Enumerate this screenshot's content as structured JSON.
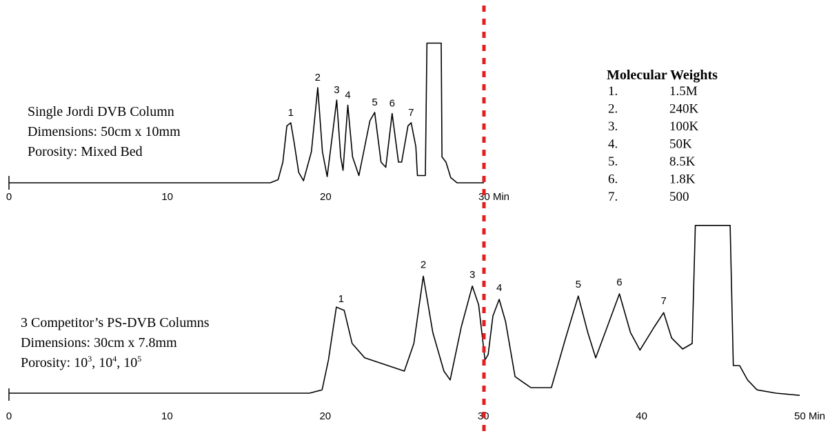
{
  "colors": {
    "trace": "#000000",
    "marker_line": "#e02020",
    "background": "#ffffff"
  },
  "chart_data": [
    {
      "type": "line",
      "panel": "top",
      "info_lines": [
        "Single Jordi DVB Column",
        "Dimensions: 50cm x 10mm",
        "Porosity: Mixed Bed"
      ],
      "xlim": [
        0,
        30
      ],
      "xticks": [
        0,
        10,
        20,
        30
      ],
      "tick_labels": [
        "0",
        "10",
        "20",
        "30 Min"
      ],
      "peaks": [
        {
          "label": "1",
          "x": 17.8
        },
        {
          "label": "2",
          "x": 19.5
        },
        {
          "label": "3",
          "x": 20.7
        },
        {
          "label": "4",
          "x": 21.4
        },
        {
          "label": "5",
          "x": 23.1
        },
        {
          "label": "6",
          "x": 24.2
        },
        {
          "label": "7",
          "x": 25.4
        }
      ],
      "trace": [
        [
          0,
          0.0
        ],
        [
          16.5,
          0.0
        ],
        [
          17.0,
          0.03
        ],
        [
          17.3,
          0.2
        ],
        [
          17.55,
          0.55
        ],
        [
          17.8,
          0.58
        ],
        [
          18.0,
          0.4
        ],
        [
          18.3,
          0.1
        ],
        [
          18.6,
          0.02
        ],
        [
          19.1,
          0.3
        ],
        [
          19.5,
          0.92
        ],
        [
          19.8,
          0.3
        ],
        [
          20.1,
          0.06
        ],
        [
          20.5,
          0.55
        ],
        [
          20.7,
          0.8
        ],
        [
          20.95,
          0.25
        ],
        [
          21.1,
          0.12
        ],
        [
          21.4,
          0.75
        ],
        [
          21.7,
          0.25
        ],
        [
          22.1,
          0.07
        ],
        [
          22.8,
          0.6
        ],
        [
          23.1,
          0.68
        ],
        [
          23.5,
          0.2
        ],
        [
          23.8,
          0.15
        ],
        [
          24.2,
          0.67
        ],
        [
          24.6,
          0.2
        ],
        [
          24.8,
          0.2
        ],
        [
          25.2,
          0.55
        ],
        [
          25.4,
          0.58
        ],
        [
          25.7,
          0.35
        ],
        [
          25.8,
          0.07
        ],
        [
          26.3,
          0.07
        ],
        [
          26.4,
          1.35
        ],
        [
          27.3,
          1.35
        ],
        [
          27.35,
          0.25
        ],
        [
          27.6,
          0.2
        ],
        [
          27.9,
          0.05
        ],
        [
          28.3,
          0.0
        ],
        [
          30,
          0.0
        ]
      ]
    },
    {
      "type": "line",
      "panel": "bottom",
      "info_lines": [
        "3 Competitor’s PS-DVB Columns",
        "Dimensions: 30cm x 7.8mm"
      ],
      "porosity": {
        "label": "Porosity:",
        "values": [
          {
            "base": "10",
            "exp": "3"
          },
          {
            "base": "10",
            "exp": "4"
          },
          {
            "base": "10",
            "exp": "5"
          }
        ]
      },
      "xlim": [
        0,
        50
      ],
      "xticks": [
        0,
        10,
        20,
        30,
        40,
        50
      ],
      "tick_labels": [
        "0",
        "10",
        "20",
        "30",
        "40",
        "50 Min"
      ],
      "peaks": [
        {
          "label": "1",
          "x": 21.0
        },
        {
          "label": "2",
          "x": 26.2
        },
        {
          "label": "3",
          "x": 29.3
        },
        {
          "label": "4",
          "x": 31.0
        },
        {
          "label": "5",
          "x": 36.0
        },
        {
          "label": "6",
          "x": 38.6
        },
        {
          "label": "7",
          "x": 41.4
        }
      ],
      "trace": [
        [
          0,
          0.0
        ],
        [
          19.0,
          0.0
        ],
        [
          19.8,
          0.03
        ],
        [
          20.2,
          0.3
        ],
        [
          20.7,
          0.78
        ],
        [
          21.2,
          0.75
        ],
        [
          21.7,
          0.45
        ],
        [
          22.5,
          0.32
        ],
        [
          25.0,
          0.2
        ],
        [
          25.6,
          0.45
        ],
        [
          26.2,
          1.06
        ],
        [
          26.8,
          0.55
        ],
        [
          27.5,
          0.2
        ],
        [
          27.9,
          0.12
        ],
        [
          28.6,
          0.6
        ],
        [
          29.3,
          0.97
        ],
        [
          29.7,
          0.8
        ],
        [
          30.1,
          0.3
        ],
        [
          30.3,
          0.35
        ],
        [
          30.6,
          0.7
        ],
        [
          31.0,
          0.85
        ],
        [
          31.4,
          0.65
        ],
        [
          32.0,
          0.15
        ],
        [
          33.0,
          0.05
        ],
        [
          34.3,
          0.05
        ],
        [
          35.2,
          0.5
        ],
        [
          36.0,
          0.88
        ],
        [
          36.6,
          0.55
        ],
        [
          37.1,
          0.32
        ],
        [
          37.7,
          0.55
        ],
        [
          38.6,
          0.9
        ],
        [
          39.3,
          0.55
        ],
        [
          39.9,
          0.39
        ],
        [
          40.8,
          0.6
        ],
        [
          41.4,
          0.73
        ],
        [
          41.9,
          0.5
        ],
        [
          42.6,
          0.4
        ],
        [
          43.2,
          0.45
        ],
        [
          43.4,
          1.52
        ],
        [
          45.6,
          1.52
        ],
        [
          45.8,
          0.25
        ],
        [
          46.2,
          0.25
        ],
        [
          46.7,
          0.12
        ],
        [
          47.3,
          0.03
        ],
        [
          48.5,
          0.0
        ],
        [
          50,
          -0.02
        ]
      ]
    }
  ],
  "legend": {
    "title": "Molecular Weights",
    "entries": [
      {
        "num": "1.",
        "value": "1.5M"
      },
      {
        "num": "2.",
        "value": "240K"
      },
      {
        "num": "3.",
        "value": "100K"
      },
      {
        "num": "4.",
        "value": "50K"
      },
      {
        "num": "5.",
        "value": "8.5K"
      },
      {
        "num": "6.",
        "value": "1.8K"
      },
      {
        "num": "7.",
        "value": "500"
      }
    ]
  },
  "reference_line": {
    "x_min": 30
  }
}
